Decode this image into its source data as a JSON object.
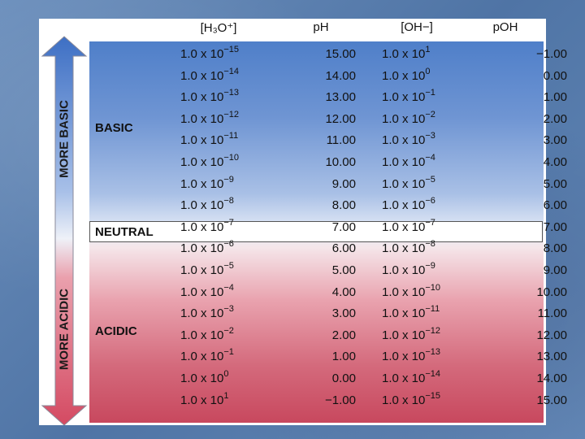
{
  "headers": {
    "h3o": "[H₃O⁺]",
    "ph": "pH",
    "oh": "[OH−]",
    "poh": "pOH"
  },
  "arrow_labels": {
    "top": "MORE BASIC",
    "bottom": "MORE ACIDIC"
  },
  "group_labels": {
    "basic": "BASIC",
    "neutral": "NEUTRAL",
    "acidic": "ACIDIC"
  },
  "colors": {
    "basic_blue": "#4f7fc9",
    "acidic_red": "#c8485e",
    "arrow_blue": "#3d6fc4",
    "arrow_red": "#d44a62"
  },
  "rows": [
    {
      "h3o_base": "1.0 x 10",
      "h3o_exp": "−15",
      "ph": "15.00",
      "oh_base": "1.0 x 10",
      "oh_exp": "1",
      "poh": "−1.00"
    },
    {
      "h3o_base": "1.0 x 10",
      "h3o_exp": "−14",
      "ph": "14.00",
      "oh_base": "1.0 x 10",
      "oh_exp": "0",
      "poh": "0.00"
    },
    {
      "h3o_base": "1.0 x 10",
      "h3o_exp": "−13",
      "ph": "13.00",
      "oh_base": "1.0 x 10",
      "oh_exp": "−1",
      "poh": "1.00"
    },
    {
      "h3o_base": "1.0 x 10",
      "h3o_exp": "−12",
      "ph": "12.00",
      "oh_base": "1.0 x 10",
      "oh_exp": "−2",
      "poh": "2.00"
    },
    {
      "h3o_base": "1.0 x 10",
      "h3o_exp": "−11",
      "ph": "11.00",
      "oh_base": "1.0 x 10",
      "oh_exp": "−3",
      "poh": "3.00"
    },
    {
      "h3o_base": "1.0 x 10",
      "h3o_exp": "−10",
      "ph": "10.00",
      "oh_base": "1.0 x 10",
      "oh_exp": "−4",
      "poh": "4.00"
    },
    {
      "h3o_base": "1.0 x 10",
      "h3o_exp": "−9",
      "ph": "9.00",
      "oh_base": "1.0 x 10",
      "oh_exp": "−5",
      "poh": "5.00"
    },
    {
      "h3o_base": "1.0 x 10",
      "h3o_exp": "−8",
      "ph": "8.00",
      "oh_base": "1.0 x 10",
      "oh_exp": "−6",
      "poh": "6.00"
    },
    {
      "h3o_base": "1.0 x 10",
      "h3o_exp": "−7",
      "ph": "7.00",
      "oh_base": "1.0 x 10",
      "oh_exp": "−7",
      "poh": "7.00"
    },
    {
      "h3o_base": "1.0 x 10",
      "h3o_exp": "−6",
      "ph": "6.00",
      "oh_base": "1.0 x 10",
      "oh_exp": "−8",
      "poh": "8.00"
    },
    {
      "h3o_base": "1.0 x 10",
      "h3o_exp": "−5",
      "ph": "5.00",
      "oh_base": "1.0 x 10",
      "oh_exp": "−9",
      "poh": "9.00"
    },
    {
      "h3o_base": "1.0 x 10",
      "h3o_exp": "−4",
      "ph": "4.00",
      "oh_base": "1.0 x 10",
      "oh_exp": "−10",
      "poh": "10.00"
    },
    {
      "h3o_base": "1.0 x 10",
      "h3o_exp": "−3",
      "ph": "3.00",
      "oh_base": "1.0 x 10",
      "oh_exp": "−11",
      "poh": "11.00"
    },
    {
      "h3o_base": "1.0 x 10",
      "h3o_exp": "−2",
      "ph": "2.00",
      "oh_base": "1.0 x 10",
      "oh_exp": "−12",
      "poh": "12.00"
    },
    {
      "h3o_base": "1.0 x 10",
      "h3o_exp": "−1",
      "ph": "1.00",
      "oh_base": "1.0 x 10",
      "oh_exp": "−13",
      "poh": "13.00"
    },
    {
      "h3o_base": "1.0 x 10",
      "h3o_exp": "0",
      "ph": "0.00",
      "oh_base": "1.0 x 10",
      "oh_exp": "−14",
      "poh": "14.00"
    },
    {
      "h3o_base": "1.0 x 10",
      "h3o_exp": "1",
      "ph": "−1.00",
      "oh_base": "1.0 x 10",
      "oh_exp": "−15",
      "poh": "15.00"
    }
  ]
}
